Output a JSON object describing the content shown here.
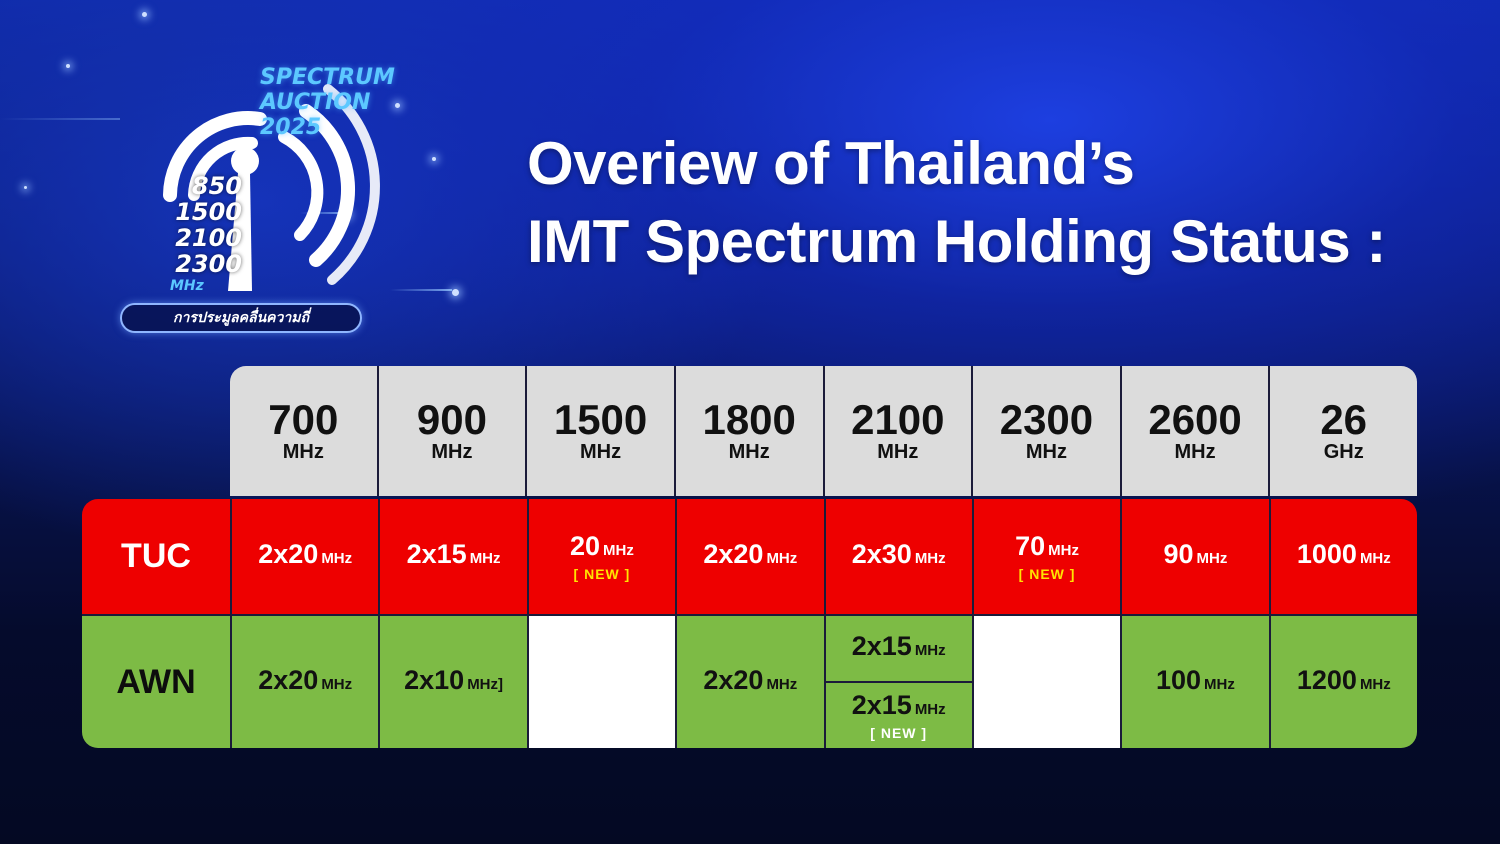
{
  "logo": {
    "title_lines": [
      "SPECTRUM",
      "AUCTION",
      "2025"
    ],
    "freqs": [
      "850",
      "1500",
      "2100",
      "2300"
    ],
    "freq_unit": "MHz",
    "subtitle": "การประมูลคลื่นความถี่"
  },
  "headline": {
    "line1": "Overiew of Thailand’s",
    "line2": "IMT Spectrum Holding Status :"
  },
  "table": {
    "bands": [
      {
        "value": "700",
        "unit": "MHz"
      },
      {
        "value": "900",
        "unit": "MHz"
      },
      {
        "value": "1500",
        "unit": "MHz"
      },
      {
        "value": "1800",
        "unit": "MHz"
      },
      {
        "value": "2100",
        "unit": "MHz"
      },
      {
        "value": "2300",
        "unit": "MHz"
      },
      {
        "value": "2600",
        "unit": "MHz"
      },
      {
        "value": "26",
        "unit": "GHz"
      }
    ],
    "tuc": {
      "label": "TUC",
      "cells": [
        {
          "value": "2x20",
          "unit": "MHz"
        },
        {
          "value": "2x15",
          "unit": "MHz"
        },
        {
          "value": "20",
          "unit": "MHz",
          "tag": "[ NEW ]"
        },
        {
          "value": "2x20",
          "unit": "MHz"
        },
        {
          "value": "2x30",
          "unit": "MHz"
        },
        {
          "value": "70",
          "unit": "MHz",
          "tag": "[ NEW ]"
        },
        {
          "value": "90",
          "unit": "MHz"
        },
        {
          "value": "1000",
          "unit": "MHz"
        }
      ]
    },
    "awn": {
      "label": "AWN",
      "cells": [
        {
          "value": "2x20",
          "unit": "MHz"
        },
        {
          "value": "2x10",
          "unit": "MHz]"
        },
        {
          "value": "",
          "unit": ""
        },
        {
          "value": "2x20",
          "unit": "MHz"
        },
        {
          "top": {
            "value": "2x15",
            "unit": "MHz"
          },
          "bottom": {
            "value": "2x15",
            "unit": "MHz",
            "tag": "[ NEW ]"
          }
        },
        {
          "value": "",
          "unit": ""
        },
        {
          "value": "100",
          "unit": "MHz"
        },
        {
          "value": "1200",
          "unit": "MHz"
        }
      ]
    }
  },
  "colors": {
    "tuc_red": "#ee0000",
    "awn_green": "#7dbb45",
    "header_gray": "#dcdcdc",
    "new_tag_yellow": "#ffe400"
  }
}
